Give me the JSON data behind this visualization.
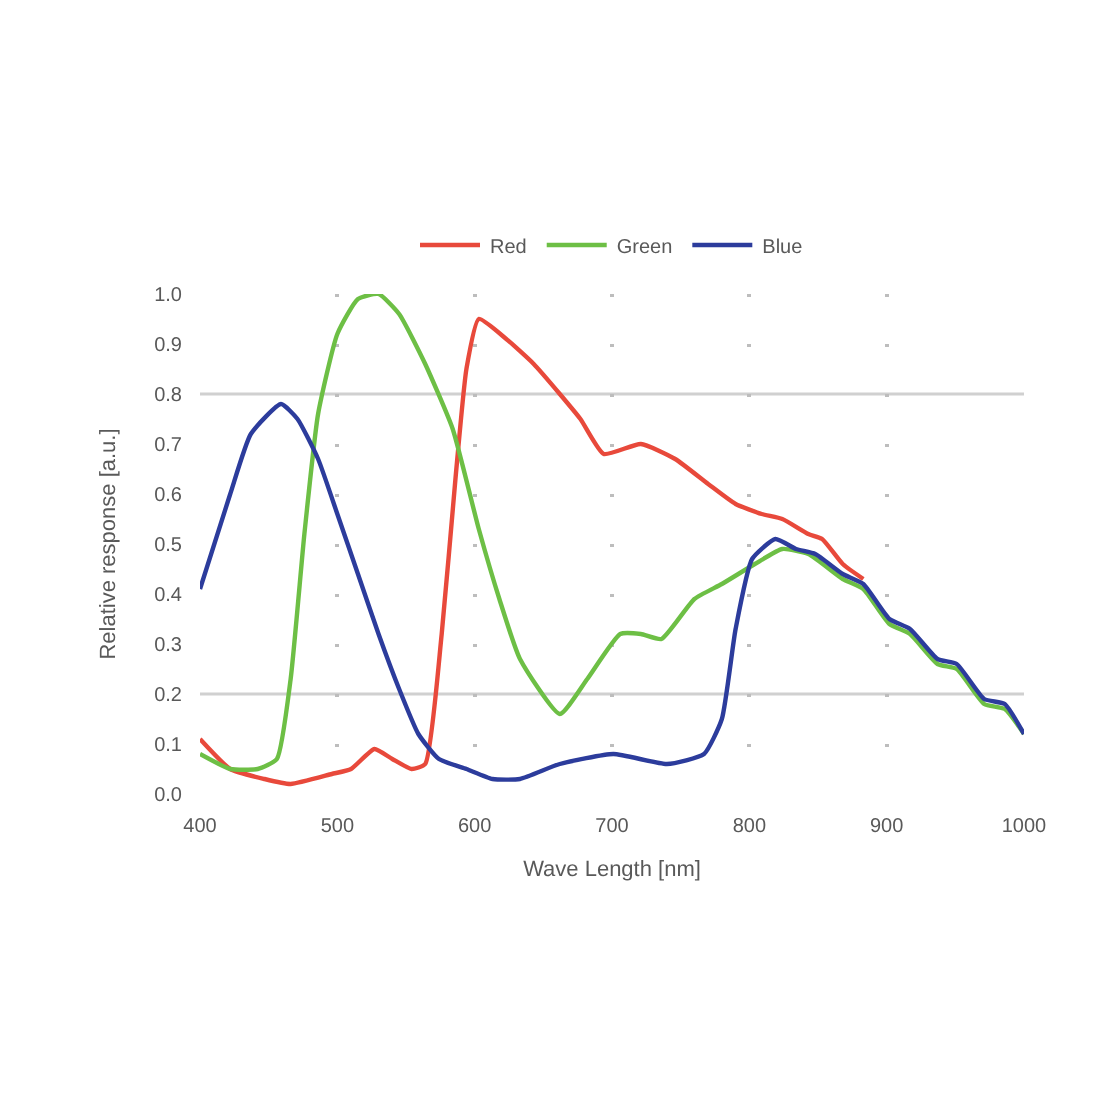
{
  "chart_data": {
    "type": "line",
    "xlabel": "Wave Length [nm]",
    "ylabel": "Relative response [a.u.]",
    "xlim": [
      400,
      1000
    ],
    "xticks": [
      400,
      500,
      600,
      700,
      800,
      900,
      1000
    ],
    "ylim": [
      0,
      1
    ],
    "yticks": [
      {
        "value": 0,
        "label": "0.0"
      },
      0.1,
      0.2,
      0.3,
      0.4,
      0.5,
      0.6,
      0.7,
      0.8,
      0.9,
      {
        "value": 1,
        "label": "1.0"
      }
    ],
    "grid": "x",
    "legend": "top",
    "line_style": "solid",
    "ref_lines": [
      {
        "axis": "y",
        "value": 0.2,
        "color": "#d0d0d0"
      },
      {
        "axis": "y",
        "value": 0.8,
        "color": "#d0d0d0"
      }
    ],
    "series": [
      {
        "name": "Red",
        "color": "#e8493b",
        "x": [
          400,
          422,
          447,
          466,
          496,
          510,
          527,
          540,
          554,
          564,
          576,
          586,
          594,
          603,
          623,
          643,
          662,
          677,
          694,
          721,
          746,
          770,
          790,
          809,
          824,
          843,
          853,
          868,
          883
        ],
        "values": [
          0.11,
          0.05,
          0.03,
          0.02,
          0.04,
          0.05,
          0.09,
          0.07,
          0.05,
          0.06,
          0.32,
          0.63,
          0.85,
          0.95,
          0.91,
          0.86,
          0.8,
          0.75,
          0.68,
          0.7,
          0.67,
          0.62,
          0.58,
          0.56,
          0.55,
          0.52,
          0.51,
          0.46,
          0.43
        ]
      },
      {
        "name": "Green",
        "color": "#6dbf45",
        "x": [
          400,
          422,
          442,
          456,
          466,
          476,
          486,
          500,
          515,
          530,
          545,
          564,
          584,
          603,
          618,
          633,
          662,
          682,
          706,
          721,
          736,
          760,
          780,
          804,
          824,
          843,
          868,
          883,
          902,
          917,
          937,
          951,
          971,
          986,
          1000
        ],
        "values": [
          0.08,
          0.05,
          0.05,
          0.07,
          0.23,
          0.52,
          0.76,
          0.92,
          0.99,
          1.0,
          0.96,
          0.86,
          0.73,
          0.53,
          0.39,
          0.27,
          0.16,
          0.23,
          0.32,
          0.32,
          0.31,
          0.39,
          0.42,
          0.46,
          0.49,
          0.48,
          0.43,
          0.41,
          0.34,
          0.32,
          0.26,
          0.25,
          0.18,
          0.17,
          0.12
        ]
      },
      {
        "name": "Blue",
        "color": "#2c3c9c",
        "x": [
          400,
          422,
          437,
          459,
          471,
          486,
          500,
          515,
          530,
          545,
          559,
          574,
          594,
          613,
          633,
          662,
          701,
          740,
          767,
          780,
          790,
          802,
          819,
          834,
          848,
          868,
          883,
          902,
          917,
          937,
          951,
          971,
          986,
          1000
        ],
        "values": [
          0.41,
          0.6,
          0.72,
          0.78,
          0.75,
          0.67,
          0.56,
          0.44,
          0.32,
          0.21,
          0.12,
          0.07,
          0.05,
          0.03,
          0.03,
          0.06,
          0.08,
          0.06,
          0.08,
          0.15,
          0.33,
          0.47,
          0.51,
          0.49,
          0.48,
          0.44,
          0.42,
          0.35,
          0.33,
          0.27,
          0.26,
          0.19,
          0.18,
          0.12
        ]
      }
    ]
  }
}
